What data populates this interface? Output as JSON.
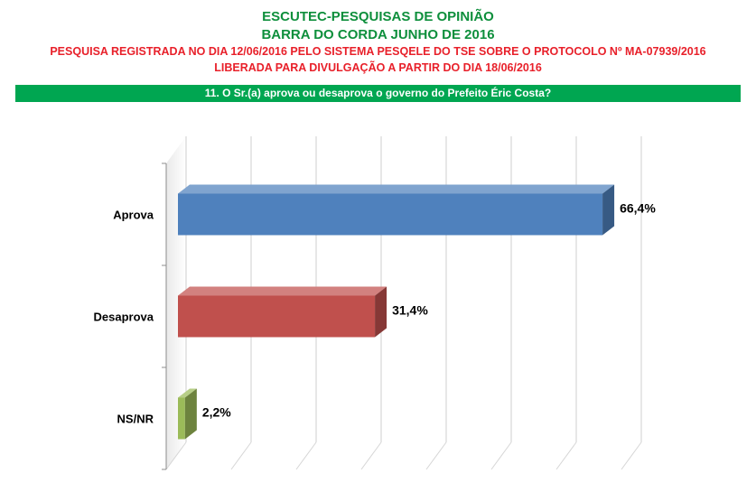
{
  "header": {
    "title": "ESCUTEC-PESQUISAS DE OPINIÃO",
    "subtitle": "BARRA DO CORDA JUNHO DE 2016",
    "registration": "PESQUISA REGISTRADA NO DIA 12/06/2016 PELO SISTEMA PESQELE DO TSE SOBRE O PROTOCOLO Nº MA-07939/2016",
    "release": "LIBERADA PARA DIVULGAÇÃO A PARTIR DO DIA 18/06/2016"
  },
  "question": "11. O Sr.(a) aprova ou desaprova o governo do Prefeito Éric Costa?",
  "chart_data": {
    "type": "bar",
    "orientation": "horizontal",
    "categories": [
      "Aprova",
      "Desaprova",
      "NS/NR"
    ],
    "values": [
      66.4,
      31.4,
      2.2
    ],
    "value_labels": [
      "66,4%",
      "31,4%",
      "2,2%"
    ],
    "colors": [
      "#4f81bd",
      "#c0504d",
      "#9bbb59"
    ],
    "xlim": [
      0,
      75
    ],
    "grid": true,
    "legend": "none",
    "title": "",
    "xlabel": "",
    "ylabel": ""
  }
}
